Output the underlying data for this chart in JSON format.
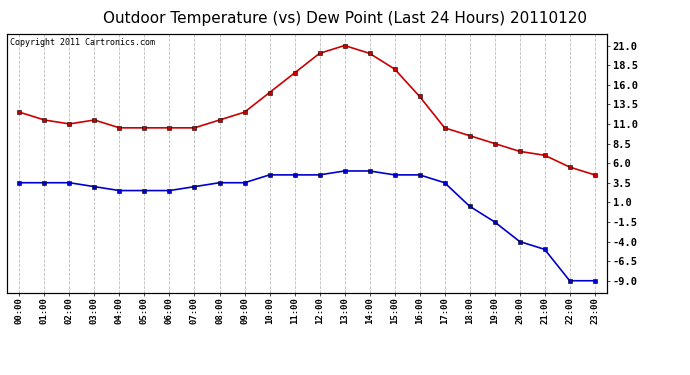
{
  "title": "Outdoor Temperature (vs) Dew Point (Last 24 Hours) 20110120",
  "copyright_text": "Copyright 2011 Cartronics.com",
  "hours": [
    "00:00",
    "01:00",
    "02:00",
    "03:00",
    "04:00",
    "05:00",
    "06:00",
    "07:00",
    "08:00",
    "09:00",
    "10:00",
    "11:00",
    "12:00",
    "13:00",
    "14:00",
    "15:00",
    "16:00",
    "17:00",
    "18:00",
    "19:00",
    "20:00",
    "21:00",
    "22:00",
    "23:00"
  ],
  "temp_red": [
    12.5,
    11.5,
    11.0,
    11.5,
    10.5,
    10.5,
    10.5,
    10.5,
    11.5,
    12.5,
    15.0,
    17.5,
    20.0,
    21.0,
    20.0,
    18.0,
    14.5,
    10.5,
    9.5,
    8.5,
    7.5,
    7.0,
    5.5,
    4.5
  ],
  "dew_blue": [
    3.5,
    3.5,
    3.5,
    3.0,
    2.5,
    2.5,
    2.5,
    3.0,
    3.5,
    3.5,
    4.5,
    4.5,
    4.5,
    5.0,
    5.0,
    4.5,
    4.5,
    3.5,
    0.5,
    -1.5,
    -4.0,
    -5.0,
    -9.0,
    -9.0
  ],
  "red_color": "#cc0000",
  "blue_color": "#0000cc",
  "bg_color": "#ffffff",
  "grid_color": "#bbbbbb",
  "ylim": [
    -10.5,
    22.5
  ],
  "yticks_right": [
    21.0,
    18.5,
    16.0,
    13.5,
    11.0,
    8.5,
    6.0,
    3.5,
    1.0,
    -1.5,
    -4.0,
    -6.5,
    -9.0
  ],
  "title_fontsize": 11,
  "marker": "s",
  "marker_size": 3.5,
  "line_width": 1.2
}
